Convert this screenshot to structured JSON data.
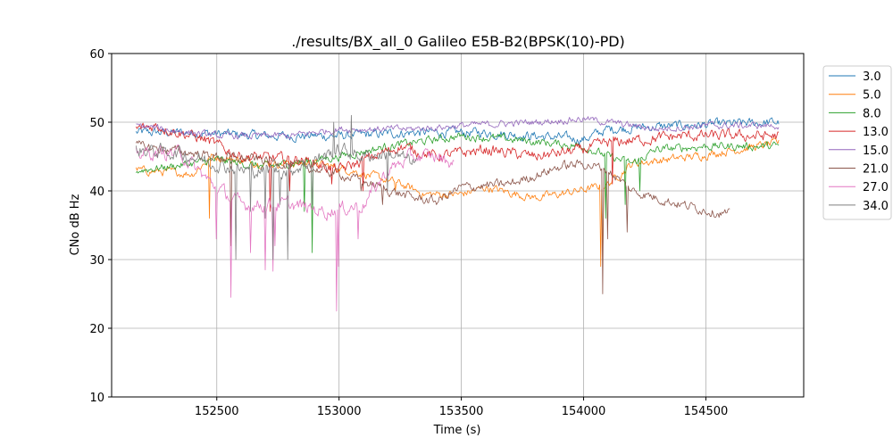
{
  "chart_data": {
    "type": "line",
    "title": "./results/BX_all_0 Galileo E5B-B2(BPSK(10)-PD)",
    "xlabel": "Time (s)",
    "ylabel": "CNo dB Hz",
    "xlim": [
      152070,
      154900
    ],
    "ylim": [
      10,
      60
    ],
    "xticks": [
      152500,
      153000,
      153500,
      154000,
      154500
    ],
    "yticks": [
      10,
      20,
      30,
      40,
      50,
      60
    ],
    "grid": true,
    "legend_position": "outside-right",
    "series": [
      {
        "name": "3.0",
        "color": "#1f77b4",
        "noise": 0.7,
        "points": [
          [
            152170,
            48.5
          ],
          [
            152400,
            48.5
          ],
          [
            152700,
            48
          ],
          [
            153000,
            48
          ],
          [
            153300,
            48.5
          ],
          [
            153600,
            48.5
          ],
          [
            154000,
            47.5
          ],
          [
            154100,
            49
          ],
          [
            154400,
            49.5
          ],
          [
            154800,
            50
          ]
        ],
        "spikes": []
      },
      {
        "name": "5.0",
        "color": "#ff7f0e",
        "noise": 0.6,
        "points": [
          [
            152170,
            43
          ],
          [
            152400,
            42.5
          ],
          [
            152480,
            45
          ],
          [
            152700,
            44
          ],
          [
            152900,
            44
          ],
          [
            153050,
            43
          ],
          [
            153250,
            41
          ],
          [
            153350,
            39.5
          ],
          [
            153500,
            39.5
          ],
          [
            153600,
            40.5
          ],
          [
            153800,
            39
          ],
          [
            153900,
            39.5
          ],
          [
            154050,
            40.5
          ],
          [
            154100,
            41
          ],
          [
            154200,
            44
          ],
          [
            154450,
            45
          ],
          [
            154800,
            47
          ]
        ],
        "spikes": [
          [
            152470,
            36
          ],
          [
            154070,
            29
          ],
          [
            154080,
            30
          ],
          [
            153230,
            40
          ]
        ]
      },
      {
        "name": "8.0",
        "color": "#2ca02c",
        "noise": 0.6,
        "points": [
          [
            152170,
            43
          ],
          [
            152300,
            43.5
          ],
          [
            152500,
            44.5
          ],
          [
            152700,
            43.5
          ],
          [
            153000,
            45
          ],
          [
            153200,
            46.5
          ],
          [
            153500,
            48
          ],
          [
            153700,
            47.5
          ],
          [
            154000,
            46.5
          ],
          [
            154100,
            45
          ],
          [
            154200,
            44
          ],
          [
            154300,
            46
          ],
          [
            154500,
            46.5
          ],
          [
            154800,
            46.5
          ]
        ],
        "spikes": [
          [
            152890,
            31
          ],
          [
            152860,
            37
          ],
          [
            154170,
            38
          ],
          [
            154090,
            36
          ],
          [
            154230,
            40
          ]
        ]
      },
      {
        "name": "13.0",
        "color": "#d62728",
        "noise": 0.8,
        "points": [
          [
            152170,
            49
          ],
          [
            152250,
            49.5
          ],
          [
            152450,
            47.5
          ],
          [
            152600,
            45
          ],
          [
            152850,
            44.5
          ],
          [
            153000,
            43
          ],
          [
            153250,
            46.5
          ],
          [
            153400,
            45
          ],
          [
            153600,
            46
          ],
          [
            153800,
            45
          ],
          [
            154000,
            46
          ],
          [
            154100,
            47
          ],
          [
            154400,
            48
          ],
          [
            154800,
            48
          ]
        ],
        "spikes": [
          [
            152720,
            37
          ],
          [
            152800,
            40
          ],
          [
            153100,
            40
          ],
          [
            152970,
            41
          ],
          [
            154120,
            41
          ]
        ]
      },
      {
        "name": "15.0",
        "color": "#9467bd",
        "noise": 0.5,
        "points": [
          [
            152170,
            49.5
          ],
          [
            152500,
            48
          ],
          [
            152800,
            48
          ],
          [
            153000,
            49
          ],
          [
            153300,
            49
          ],
          [
            153500,
            49.5
          ],
          [
            153800,
            50
          ],
          [
            154000,
            50.5
          ],
          [
            154100,
            50
          ],
          [
            154300,
            49
          ],
          [
            154500,
            49.5
          ],
          [
            154800,
            49.5
          ]
        ],
        "spikes": []
      },
      {
        "name": "21.0",
        "color": "#8c564b",
        "noise": 0.7,
        "points": [
          [
            152170,
            46.5
          ],
          [
            152300,
            46
          ],
          [
            152500,
            45
          ],
          [
            152700,
            44.5
          ],
          [
            153000,
            42.5
          ],
          [
            153300,
            39
          ],
          [
            153400,
            38.5
          ],
          [
            153500,
            40.5
          ],
          [
            153700,
            41
          ],
          [
            153900,
            43.5
          ],
          [
            154000,
            44
          ],
          [
            154100,
            43
          ],
          [
            154200,
            40
          ],
          [
            154400,
            38
          ],
          [
            154600,
            36.5
          ]
        ],
        "spikes": [
          [
            154080,
            25
          ],
          [
            154100,
            33
          ],
          [
            154180,
            34
          ],
          [
            152560,
            32
          ],
          [
            153180,
            38
          ],
          [
            153090,
            40
          ]
        ]
      },
      {
        "name": "27.0",
        "color": "#e377c2",
        "noise": 1.0,
        "points": [
          [
            152170,
            45.5
          ],
          [
            152350,
            45.5
          ],
          [
            152480,
            41
          ],
          [
            152600,
            38
          ],
          [
            152800,
            38
          ],
          [
            152950,
            37
          ],
          [
            153100,
            38
          ],
          [
            153200,
            43
          ],
          [
            153300,
            45
          ],
          [
            153400,
            45
          ],
          [
            153470,
            44
          ]
        ],
        "spikes": [
          [
            152560,
            24.5
          ],
          [
            152700,
            28.5
          ],
          [
            152730,
            28.3
          ],
          [
            152740,
            32
          ],
          [
            152990,
            22.5
          ],
          [
            153000,
            29
          ],
          [
            152640,
            31
          ],
          [
            153080,
            33
          ],
          [
            152500,
            33
          ]
        ]
      },
      {
        "name": "34.0",
        "color": "#7f7f7f",
        "noise": 1.0,
        "points": [
          [
            152170,
            46
          ],
          [
            152350,
            45.5
          ],
          [
            152450,
            44.5
          ],
          [
            152600,
            43
          ],
          [
            152800,
            43
          ],
          [
            153000,
            46
          ],
          [
            153100,
            45
          ],
          [
            153200,
            45.5
          ],
          [
            153320,
            44
          ]
        ],
        "spikes": [
          [
            152580,
            30
          ],
          [
            152640,
            37
          ],
          [
            152700,
            36
          ],
          [
            152730,
            30
          ],
          [
            152790,
            30
          ],
          [
            153050,
            51
          ],
          [
            152980,
            50
          ],
          [
            153200,
            40
          ],
          [
            152760,
            38
          ],
          [
            152890,
            38
          ]
        ]
      }
    ]
  }
}
